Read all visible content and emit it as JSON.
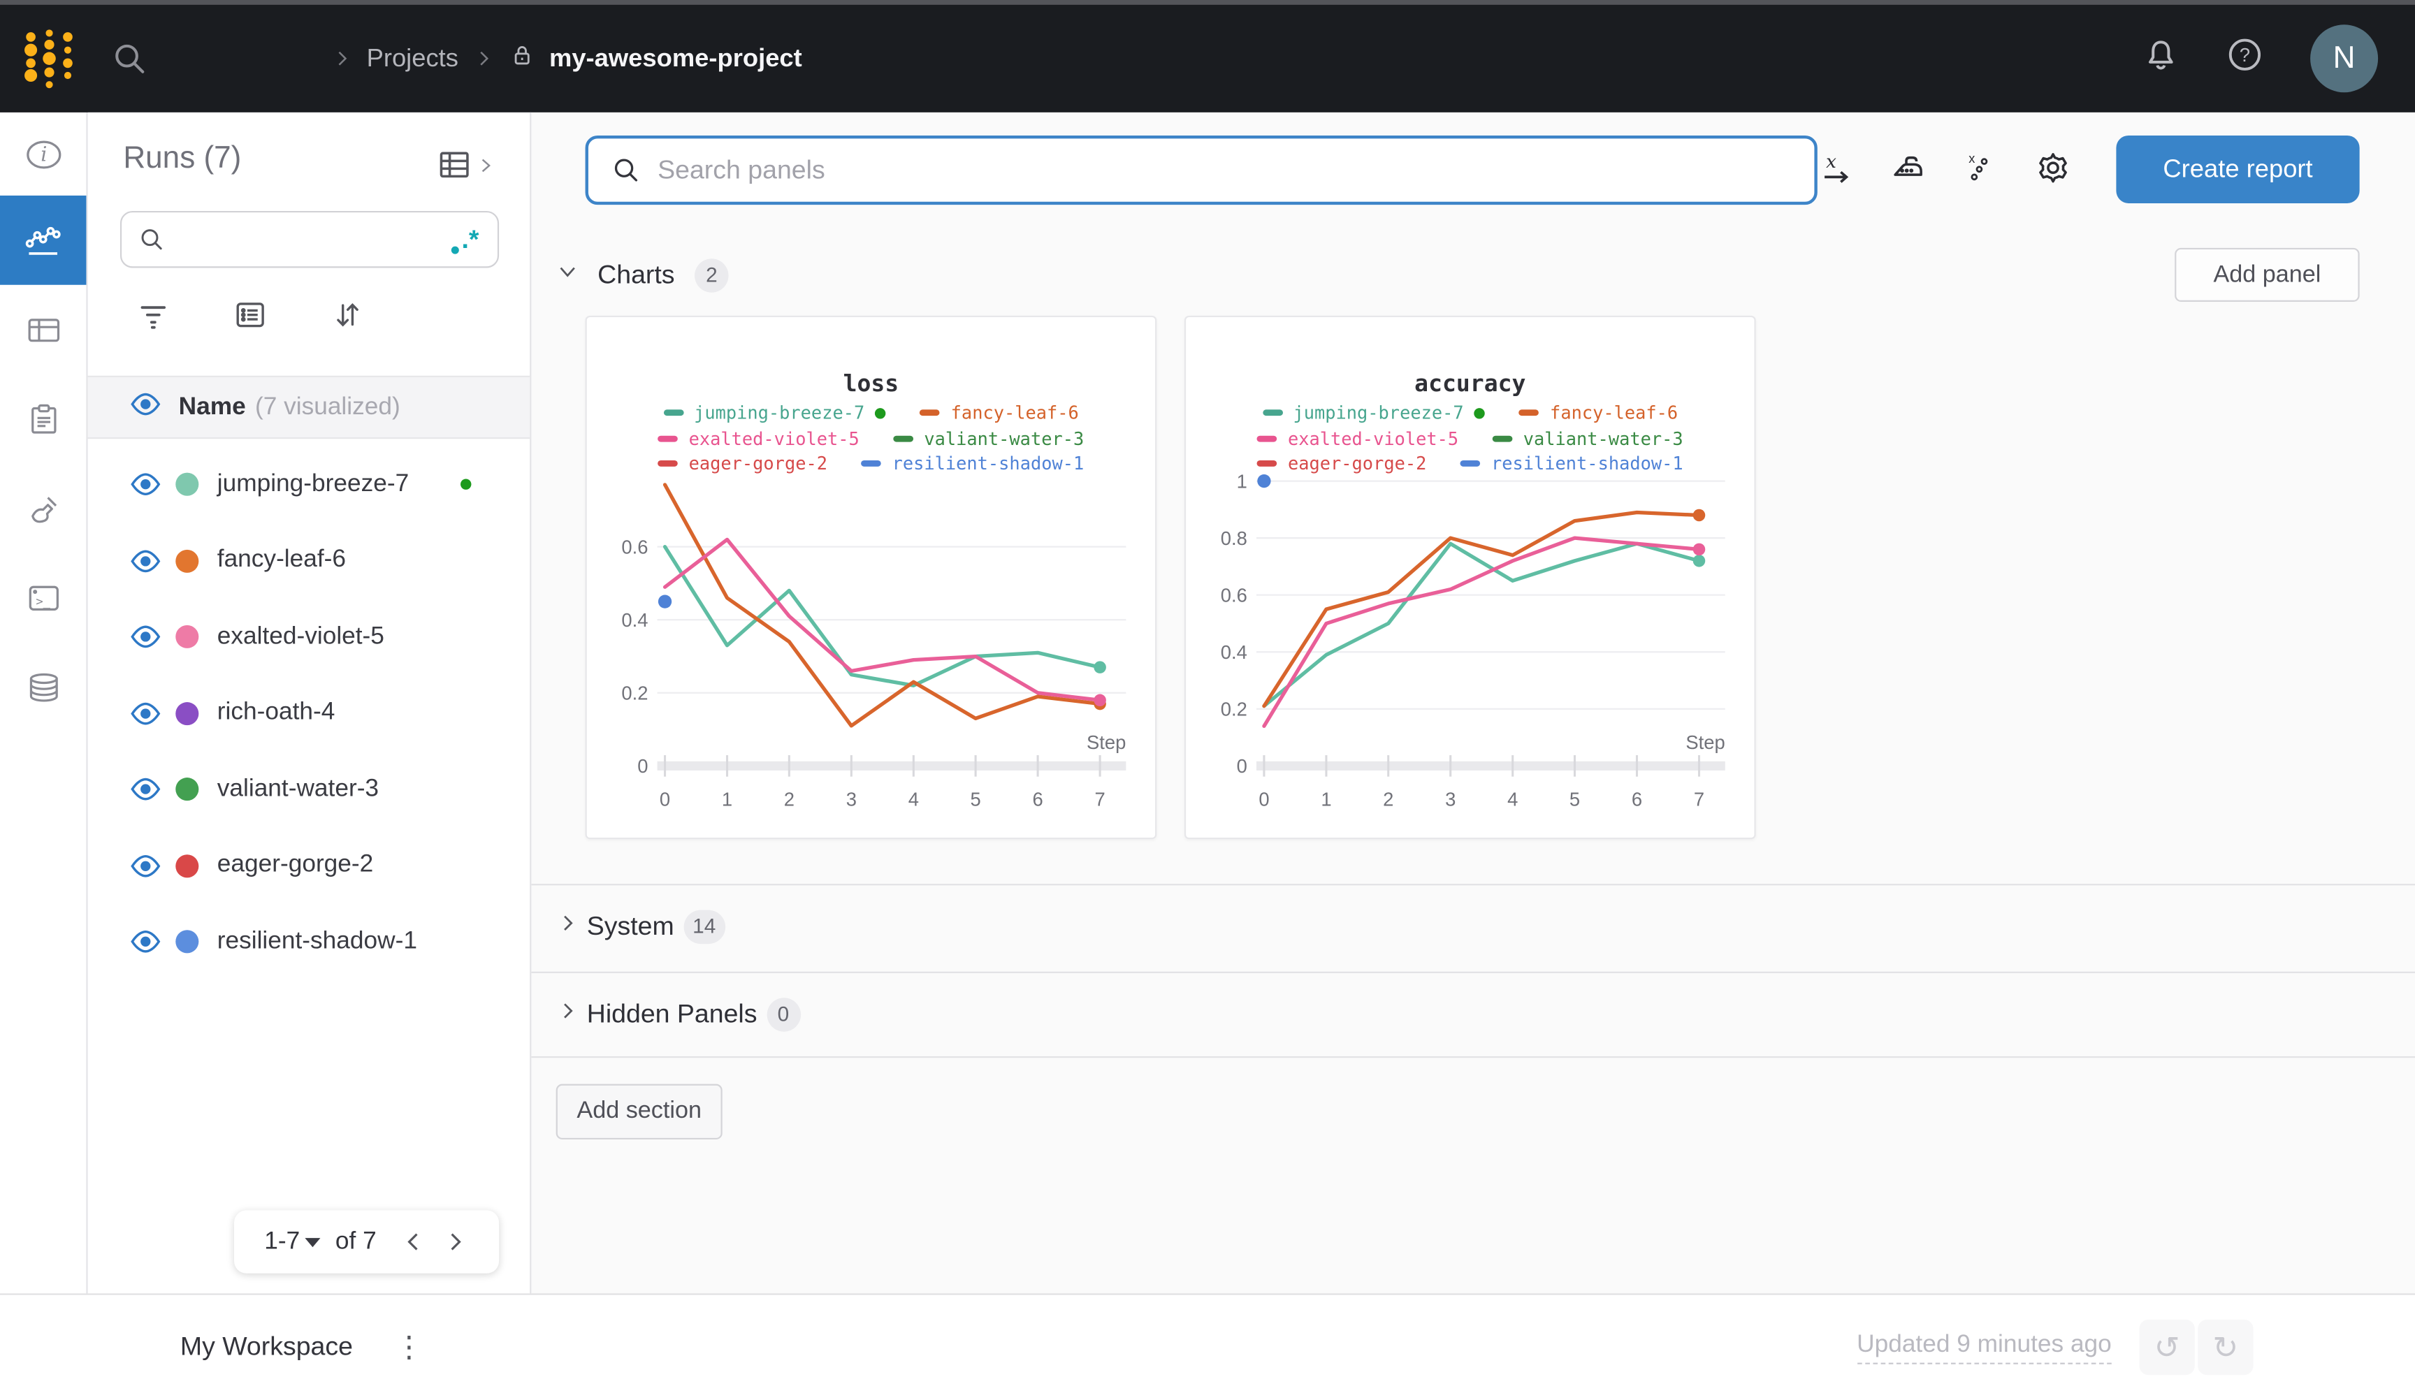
{
  "topbar": {
    "breadcrumb": {
      "projects": "Projects",
      "project": "my-awesome-project"
    },
    "avatar_initial": "N"
  },
  "rail": {
    "items": [
      "info",
      "workspace-charts",
      "tables",
      "logs",
      "sweeps",
      "terminal",
      "artifacts"
    ]
  },
  "sidebar": {
    "title": "Runs (7)",
    "search_placeholder": "",
    "regex_label": ".*",
    "header": {
      "name_label": "Name",
      "visualized_label": "(7 visualized)"
    },
    "runs": [
      {
        "name": "jumping-breeze-7",
        "dot": "#7fc8ae",
        "active": true
      },
      {
        "name": "fancy-leaf-6",
        "dot": "#e2762f",
        "active": false
      },
      {
        "name": "exalted-violet-5",
        "dot": "#ee7ba6",
        "active": false
      },
      {
        "name": "rich-oath-4",
        "dot": "#8a4ec4",
        "active": false
      },
      {
        "name": "valiant-water-3",
        "dot": "#43a051",
        "active": false
      },
      {
        "name": "eager-gorge-2",
        "dot": "#d94848",
        "active": false
      },
      {
        "name": "resilient-shadow-1",
        "dot": "#5c8ede",
        "active": false
      }
    ],
    "pagination": {
      "range": "1-7",
      "of": "of 7"
    }
  },
  "main": {
    "search": {
      "placeholder": "Search panels"
    },
    "create_report_label": "Create report",
    "add_panel_label": "Add panel",
    "add_section_label": "Add section",
    "sections": {
      "charts": {
        "label": "Charts",
        "count": "2"
      },
      "system": {
        "label": "System",
        "count": "14"
      },
      "hidden": {
        "label": "Hidden Panels",
        "count": "0"
      }
    }
  },
  "bottombar": {
    "workspace_label": "My Workspace",
    "updated_label": "Updated 9 minutes ago"
  },
  "colors": {
    "accent_blue": "#2d7cc4",
    "button_blue": "#3984c9",
    "live_green": "#1d9a1d",
    "regex_teal": "#13a8b4",
    "topbar_bg": "#1a1c20",
    "logo_gold": "#fcb119"
  },
  "chart_data": [
    {
      "type": "line",
      "title": "loss",
      "xlabel": "Step",
      "x": [
        0,
        1,
        2,
        3,
        4,
        5,
        6,
        7
      ],
      "ylim": [
        0,
        0.78
      ],
      "yticks": [
        0.2,
        0.4,
        0.6
      ],
      "grid": true,
      "legend_position": "top",
      "series": [
        {
          "name": "jumping-breeze-7",
          "color": "#5fbda3",
          "values": [
            0.6,
            0.33,
            0.48,
            0.25,
            0.22,
            0.3,
            0.31,
            0.27
          ]
        },
        {
          "name": "fancy-leaf-6",
          "color": "#d8652c",
          "values": [
            0.77,
            0.46,
            0.34,
            0.11,
            0.23,
            0.13,
            0.19,
            0.17
          ]
        },
        {
          "name": "exalted-violet-5",
          "color": "#e95f98",
          "values": [
            0.49,
            0.62,
            0.41,
            0.26,
            0.29,
            0.3,
            0.2,
            0.18
          ]
        }
      ],
      "points": [
        {
          "name": "resilient-shadow-1",
          "color": "#4f82d6",
          "x": 0,
          "y": 0.45
        }
      ],
      "legend_rows": [
        [
          {
            "name": "jumping-breeze-7",
            "color": "#47a58e",
            "live": true
          },
          {
            "name": "fancy-leaf-6",
            "color": "#d4622a",
            "live": false
          }
        ],
        [
          {
            "name": "exalted-violet-5",
            "color": "#e8548f",
            "live": false
          },
          {
            "name": "valiant-water-3",
            "color": "#3a8a44",
            "live": false
          }
        ],
        [
          {
            "name": "eager-gorge-2",
            "color": "#d64a4a",
            "live": false
          },
          {
            "name": "resilient-shadow-1",
            "color": "#4f82d6",
            "live": false
          }
        ]
      ]
    },
    {
      "type": "line",
      "title": "accuracy",
      "xlabel": "Step",
      "x": [
        0,
        1,
        2,
        3,
        4,
        5,
        6,
        7
      ],
      "ylim": [
        0,
        1.0
      ],
      "yticks": [
        0.2,
        0.4,
        0.6,
        0.8,
        1
      ],
      "grid": true,
      "legend_position": "top",
      "series": [
        {
          "name": "jumping-breeze-7",
          "color": "#5fbda3",
          "values": [
            0.21,
            0.39,
            0.5,
            0.78,
            0.65,
            0.72,
            0.78,
            0.72
          ]
        },
        {
          "name": "fancy-leaf-6",
          "color": "#d8652c",
          "values": [
            0.21,
            0.55,
            0.61,
            0.8,
            0.74,
            0.86,
            0.89,
            0.88
          ]
        },
        {
          "name": "exalted-violet-5",
          "color": "#e95f98",
          "values": [
            0.14,
            0.5,
            0.57,
            0.62,
            0.72,
            0.8,
            0.78,
            0.76
          ]
        }
      ],
      "points": [
        {
          "name": "resilient-shadow-1",
          "color": "#4f82d6",
          "x": 0,
          "y": 1.0
        }
      ],
      "legend_rows": [
        [
          {
            "name": "jumping-breeze-7",
            "color": "#47a58e",
            "live": true
          },
          {
            "name": "fancy-leaf-6",
            "color": "#d4622a",
            "live": false
          }
        ],
        [
          {
            "name": "exalted-violet-5",
            "color": "#e8548f",
            "live": false
          },
          {
            "name": "valiant-water-3",
            "color": "#3a8a44",
            "live": false
          }
        ],
        [
          {
            "name": "eager-gorge-2",
            "color": "#d64a4a",
            "live": false
          },
          {
            "name": "resilient-shadow-1",
            "color": "#4f82d6",
            "live": false
          }
        ]
      ]
    }
  ]
}
